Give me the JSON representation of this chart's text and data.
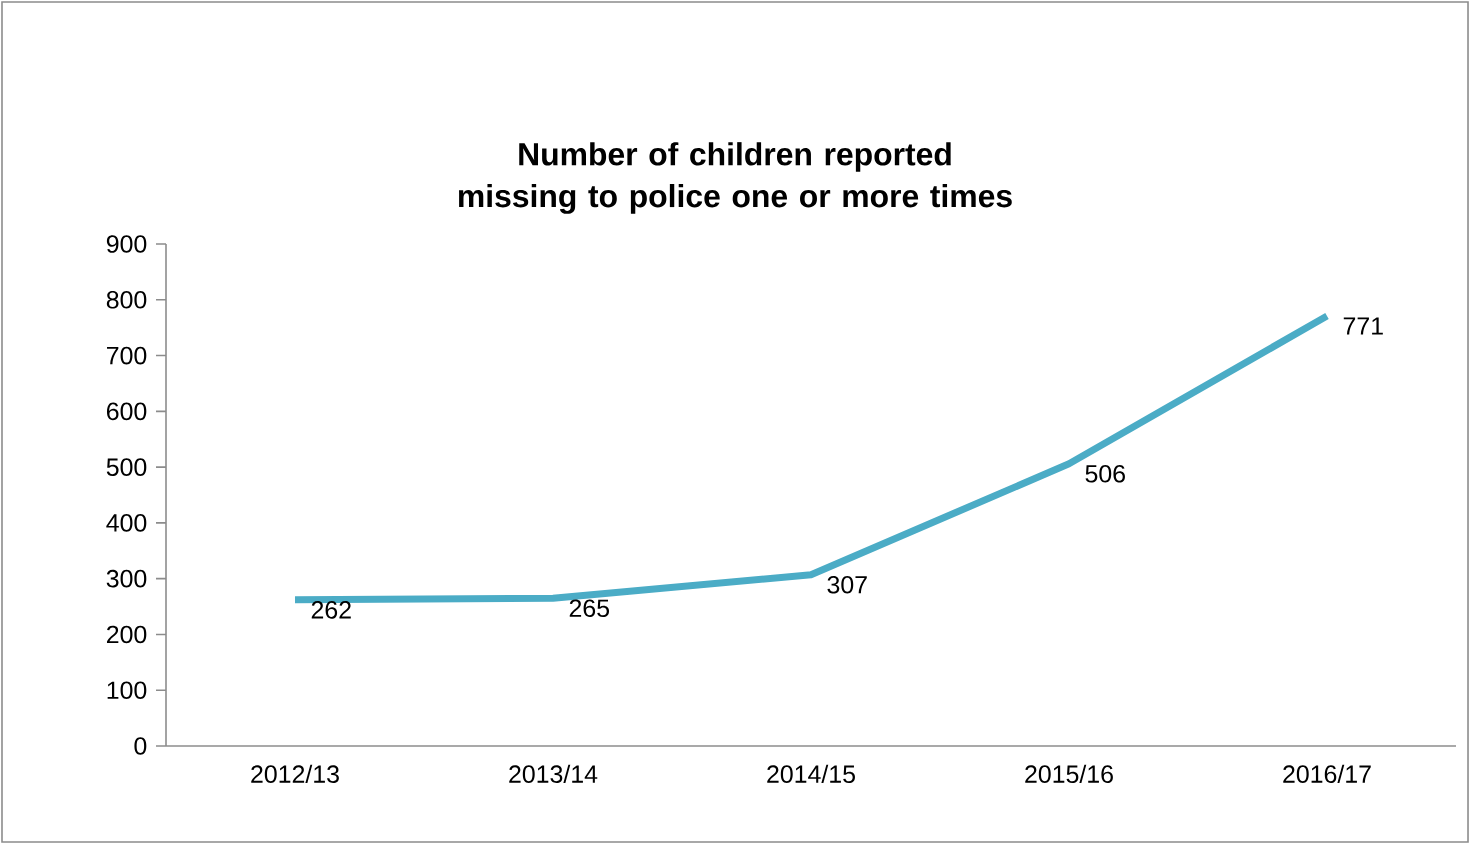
{
  "chart_data": {
    "type": "line",
    "title": "Number of children reported missing to police one or more times",
    "categories": [
      "2012/13",
      "2013/14",
      "2014/15",
      "2015/16",
      "2016/17"
    ],
    "values": [
      262,
      265,
      307,
      506,
      771
    ],
    "color": "#4bacc6",
    "ylim": [
      0,
      900
    ],
    "yticks": [
      0,
      100,
      200,
      300,
      400,
      500,
      600,
      700,
      800,
      900
    ],
    "data_labels": true,
    "marker": "none",
    "line_style": "solid"
  }
}
